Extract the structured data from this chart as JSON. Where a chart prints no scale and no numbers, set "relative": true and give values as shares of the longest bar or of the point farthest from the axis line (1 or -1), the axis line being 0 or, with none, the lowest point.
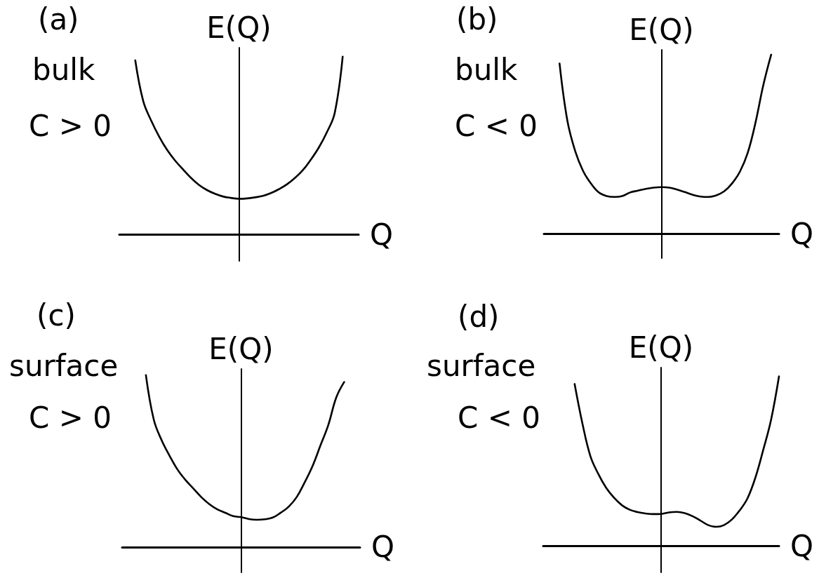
{
  "chart_data": [
    {
      "type": "line",
      "title": "(a)",
      "subtitle": "bulk",
      "annotations": [
        "C > 0"
      ],
      "xlabel": "Q",
      "ylabel": "E(Q)",
      "relative": true,
      "marker": "none",
      "color": "#000000",
      "categories": [
        null,
        null,
        null,
        null,
        null,
        null,
        null,
        null,
        null,
        null,
        null,
        null,
        null,
        null,
        null,
        null,
        null,
        null,
        null,
        null,
        null,
        null,
        null,
        null,
        null,
        null,
        null,
        null,
        null,
        null,
        null
      ],
      "values": [
        null,
        null,
        0.98,
        0.75,
        0.64,
        0.55,
        0.475,
        0.415,
        0.365,
        0.317,
        0.278,
        0.249,
        0.228,
        0.213,
        0.205,
        0.2,
        0.202,
        0.208,
        0.216,
        0.232,
        0.254,
        0.281,
        0.317,
        0.361,
        0.42,
        0.488,
        0.573,
        0.683,
        1.0,
        null,
        null
      ]
    },
    {
      "type": "line",
      "title": "(b)",
      "subtitle": "bulk",
      "annotations": [
        "C < 0"
      ],
      "xlabel": "Q",
      "ylabel": "E(Q)",
      "relative": true,
      "marker": "none",
      "color": "#000000",
      "categories": [
        null,
        null,
        null,
        null,
        null,
        null,
        null,
        null,
        null,
        null,
        null,
        null,
        null,
        null,
        null,
        null,
        null,
        null,
        null,
        null,
        null,
        null,
        null,
        null,
        null,
        null,
        null,
        null,
        null,
        null,
        null
      ],
      "values": [
        null,
        null,
        0.95,
        0.63,
        0.46,
        0.35,
        0.28,
        0.23,
        0.21,
        0.205,
        0.21,
        0.23,
        0.24,
        0.25,
        0.257,
        0.26,
        0.257,
        0.246,
        0.232,
        0.217,
        0.207,
        0.205,
        0.214,
        0.236,
        0.28,
        0.345,
        0.45,
        0.62,
        0.83,
        1.0,
        null
      ]
    },
    {
      "type": "line",
      "title": "(c)",
      "subtitle": "surface",
      "annotations": [
        "C > 0"
      ],
      "xlabel": "Q",
      "ylabel": "E(Q)",
      "relative": true,
      "marker": "none",
      "color": "#000000",
      "categories": [
        null,
        null,
        null,
        null,
        null,
        null,
        null,
        null,
        null,
        null,
        null,
        null,
        null,
        null,
        null,
        null,
        null,
        null,
        null,
        null,
        null,
        null,
        null,
        null,
        null,
        null,
        null,
        null,
        null,
        null,
        null
      ],
      "values": [
        null,
        null,
        null,
        1.0,
        0.74,
        0.62,
        0.53,
        0.45,
        0.39,
        0.34,
        0.29,
        0.25,
        0.22,
        0.2,
        0.18,
        0.174,
        0.163,
        0.159,
        0.162,
        0.172,
        0.2,
        0.235,
        0.29,
        0.375,
        0.47,
        0.59,
        0.71,
        0.87,
        0.96,
        null,
        null
      ]
    },
    {
      "type": "line",
      "title": "(d)",
      "subtitle": "surface",
      "annotations": [
        "C < 0"
      ],
      "xlabel": "Q",
      "ylabel": "E(Q)",
      "relative": true,
      "marker": "none",
      "color": "#000000",
      "categories": [
        null,
        null,
        null,
        null,
        null,
        null,
        null,
        null,
        null,
        null,
        null,
        null,
        null,
        null,
        null,
        null,
        null,
        null,
        null,
        null,
        null,
        null,
        null,
        null,
        null,
        null,
        null,
        null,
        null,
        null,
        null
      ],
      "values": [
        null,
        null,
        null,
        null,
        0.955,
        0.72,
        0.53,
        0.425,
        0.343,
        0.284,
        0.24,
        0.213,
        0.199,
        0.191,
        0.187,
        0.188,
        0.197,
        0.2,
        0.193,
        0.175,
        0.149,
        0.122,
        0.112,
        0.122,
        0.155,
        0.209,
        0.281,
        0.403,
        0.567,
        0.746,
        1.0
      ]
    }
  ]
}
